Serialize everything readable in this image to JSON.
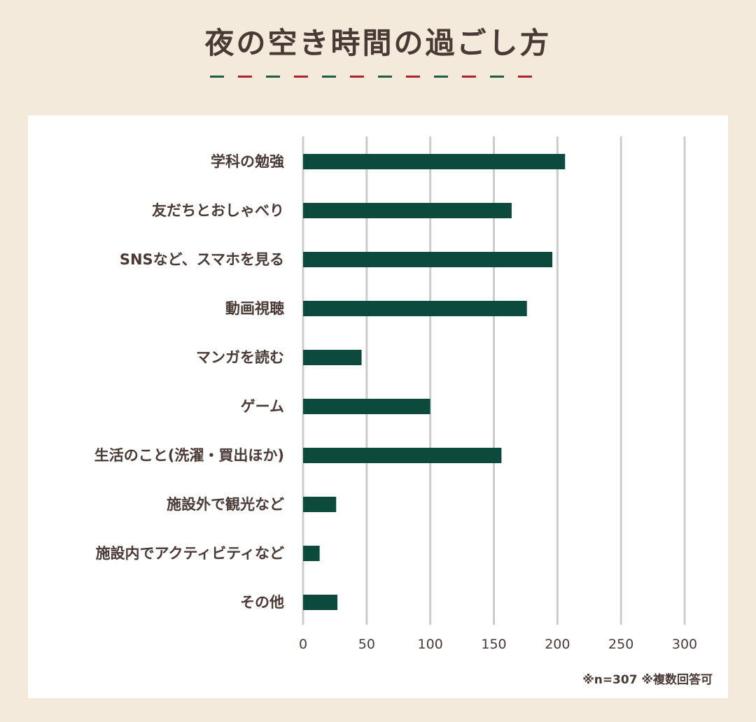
{
  "title": "夜の空き時間の過ごし方",
  "divider_colors": [
    "#1f5a44",
    "#b0202e"
  ],
  "note": "※n=307 ※複数回答可",
  "chart_data": {
    "type": "bar",
    "orientation": "horizontal",
    "title": "夜の空き時間の過ごし方",
    "categories": [
      "学科の勉強",
      "友だちとおしゃべり",
      "SNSなど、スマホを見る",
      "動画視聴",
      "マンガを読む",
      "ゲーム",
      "生活のこと(洗濯・買出ほか)",
      "施設外で観光など",
      "施設内でアクティビティなど",
      "その他"
    ],
    "values": [
      206,
      164,
      196,
      176,
      46,
      100,
      156,
      26,
      13,
      27
    ],
    "xlim": [
      0,
      300
    ],
    "xticks": [
      0,
      50,
      100,
      150,
      200,
      250,
      300
    ],
    "grid": true,
    "bar_color": "#0d4a3e",
    "grid_color": "#cccccc",
    "label_color": "#4a3a35"
  }
}
